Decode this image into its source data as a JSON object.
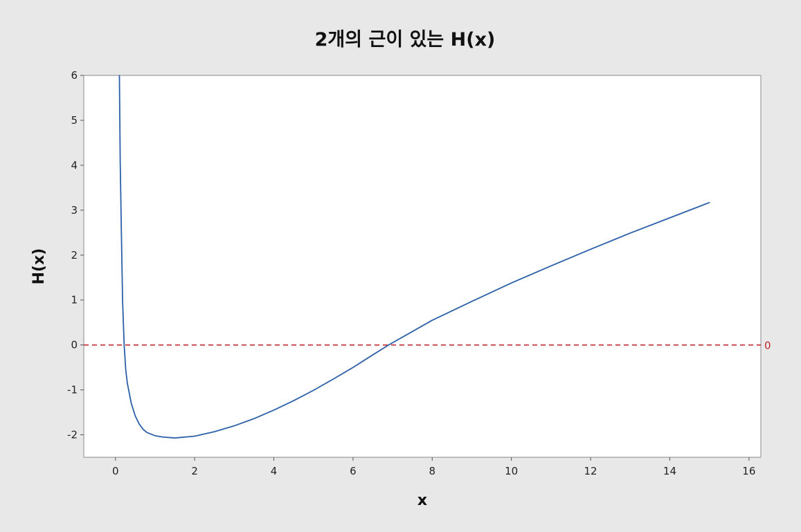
{
  "chart_data": {
    "type": "line",
    "title": "2개의 근이 있는 H(x)",
    "xlabel": "x",
    "ylabel": "H(x)",
    "xlim": [
      -0.8,
      16.3
    ],
    "ylim": [
      -2.5,
      6
    ],
    "x_ticks": [
      0,
      2,
      4,
      6,
      8,
      10,
      12,
      14,
      16
    ],
    "y_ticks": [
      -2,
      -1,
      0,
      1,
      2,
      3,
      4,
      5,
      6
    ],
    "x_tick_labels": [
      "0",
      "2",
      "4",
      "6",
      "8",
      "10",
      "12",
      "14",
      "16"
    ],
    "y_tick_labels": [
      "-2",
      "-1",
      "0",
      "1",
      "2",
      "3",
      "4",
      "5",
      "6"
    ],
    "grid": false,
    "series": [
      {
        "color": "#2b5fa8",
        "points": [
          [
            0.1,
            6.0
          ],
          [
            0.12,
            4.1
          ],
          [
            0.15,
            2.5
          ],
          [
            0.18,
            1.0
          ],
          [
            0.22,
            0.0
          ],
          [
            0.26,
            -0.55
          ],
          [
            0.3,
            -0.85
          ],
          [
            0.4,
            -1.3
          ],
          [
            0.5,
            -1.58
          ],
          [
            0.6,
            -1.76
          ],
          [
            0.7,
            -1.88
          ],
          [
            0.8,
            -1.95
          ],
          [
            1.0,
            -2.02
          ],
          [
            1.2,
            -2.05
          ],
          [
            1.5,
            -2.07
          ],
          [
            2.0,
            -2.03
          ],
          [
            2.5,
            -1.93
          ],
          [
            3.0,
            -1.8
          ],
          [
            3.5,
            -1.64
          ],
          [
            4.0,
            -1.45
          ],
          [
            4.5,
            -1.24
          ],
          [
            5.0,
            -1.01
          ],
          [
            5.5,
            -0.76
          ],
          [
            6.0,
            -0.5
          ],
          [
            6.5,
            -0.22
          ],
          [
            6.9,
            0.0
          ],
          [
            7.5,
            0.3
          ],
          [
            8.0,
            0.55
          ],
          [
            9.0,
            0.97
          ],
          [
            10.0,
            1.38
          ],
          [
            11.0,
            1.76
          ],
          [
            12.0,
            2.13
          ],
          [
            13.0,
            2.49
          ],
          [
            14.0,
            2.83
          ],
          [
            15.0,
            3.17
          ]
        ]
      }
    ],
    "reference_line": {
      "y": 0,
      "label": "0",
      "color": "#c0282d",
      "style": "dashed"
    }
  }
}
